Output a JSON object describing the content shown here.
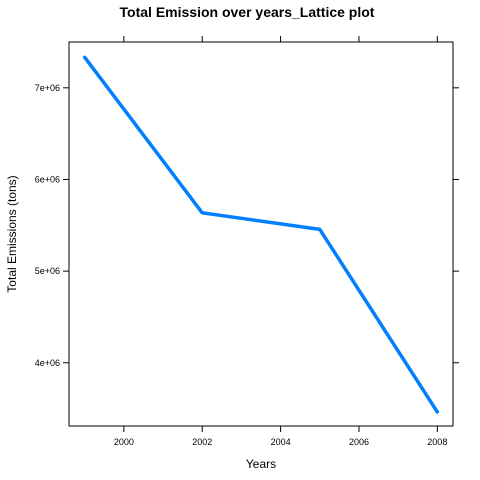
{
  "chart_data": {
    "type": "line",
    "title": "Total Emission over years_Lattice plot",
    "xlabel": "Years",
    "ylabel": "Total Emissions (tons)",
    "x": [
      1999,
      2002,
      2005,
      2008
    ],
    "series": [
      {
        "values": [
          7332967,
          5635780,
          5454703,
          3464206
        ]
      }
    ],
    "xlim": [
      1998.6,
      2008.4
    ],
    "ylim": [
      3310000,
      7500000
    ],
    "xticks": [
      2000,
      2002,
      2004,
      2006,
      2008
    ],
    "xtick_labels": [
      "2000",
      "2002",
      "2004",
      "2006",
      "2008"
    ],
    "yticks": [
      4000000,
      5000000,
      6000000,
      7000000
    ],
    "ytick_labels": [
      "4e+06",
      "5e+06",
      "6e+06",
      "7e+06"
    ],
    "line_color": "#0080ff",
    "grid": false,
    "legend": "none"
  }
}
